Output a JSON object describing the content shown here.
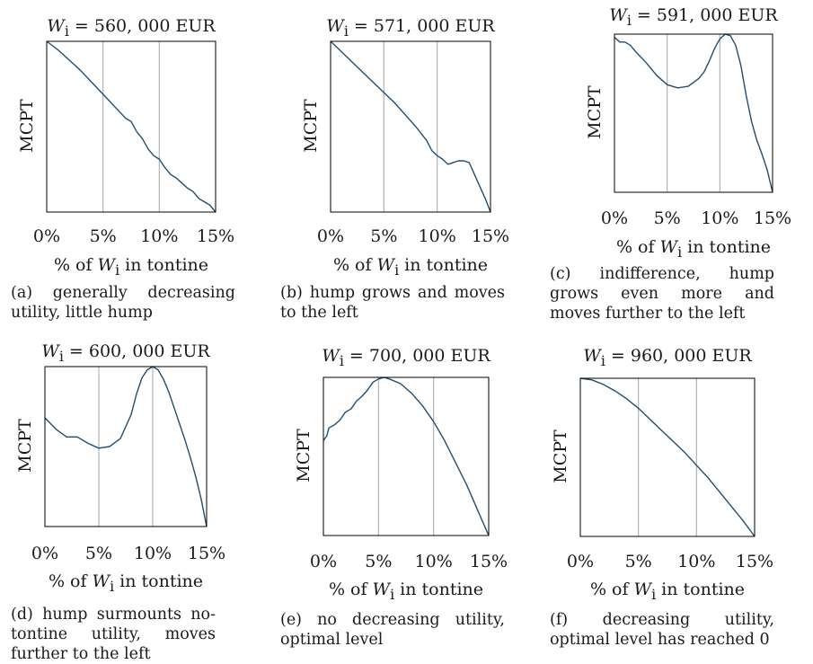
{
  "chart_data": [
    {
      "type": "line",
      "title_prefix": "W",
      "title_sub": "i",
      "title_value": " = 560, 000 EUR",
      "ylabel": "MCPT",
      "x_tick_labels": [
        "0%",
        "5%",
        "10%",
        "15%"
      ],
      "xlabel_prefix": "% of ",
      "xlabel_var": "W",
      "xlabel_sub": "i",
      "xlabel_suffix": " in tontine",
      "caption": "(a) generally decreasing utility, little hump",
      "xlim": [
        0,
        15
      ],
      "vlines": [
        5,
        10
      ],
      "x": [
        0,
        1,
        2,
        3,
        4,
        5,
        6,
        7,
        7.5,
        8,
        8.5,
        9,
        9.5,
        10,
        10.5,
        11,
        11.5,
        12,
        12.5,
        13,
        13.5,
        14,
        14.5,
        15
      ],
      "y": [
        1.0,
        0.95,
        0.89,
        0.83,
        0.76,
        0.69,
        0.62,
        0.55,
        0.53,
        0.47,
        0.43,
        0.37,
        0.33,
        0.31,
        0.26,
        0.22,
        0.2,
        0.17,
        0.14,
        0.12,
        0.08,
        0.06,
        0.04,
        0.0
      ]
    },
    {
      "type": "line",
      "title_prefix": "W",
      "title_sub": "i",
      "title_value": " = 571, 000 EUR",
      "ylabel": "MCPT",
      "x_tick_labels": [
        "0%",
        "5%",
        "10%",
        "15%"
      ],
      "xlabel_prefix": "% of ",
      "xlabel_var": "W",
      "xlabel_sub": "i",
      "xlabel_suffix": " in tontine",
      "caption": "(b) hump grows and moves to the left",
      "xlim": [
        0,
        15
      ],
      "vlines": [
        5,
        10
      ],
      "x": [
        0,
        1,
        2,
        3,
        4,
        5,
        6,
        7,
        8,
        9,
        9.5,
        10,
        10.5,
        11,
        11.5,
        12,
        12.5,
        13,
        13.5,
        14,
        14.5,
        15
      ],
      "y": [
        1.0,
        0.94,
        0.88,
        0.82,
        0.76,
        0.7,
        0.64,
        0.57,
        0.5,
        0.42,
        0.36,
        0.33,
        0.31,
        0.28,
        0.29,
        0.3,
        0.3,
        0.29,
        0.22,
        0.15,
        0.08,
        0.0
      ]
    },
    {
      "type": "line",
      "title_prefix": "W",
      "title_sub": "i",
      "title_value": " = 591, 000 EUR",
      "ylabel": "MCPT",
      "x_tick_labels": [
        "0%",
        "5%",
        "10%",
        "15%"
      ],
      "xlabel_prefix": "% of ",
      "xlabel_var": "W",
      "xlabel_sub": "i",
      "xlabel_suffix": " in tontine",
      "caption": "(c) indifference, hump grows even more and moves further to the left",
      "xlim": [
        0,
        15
      ],
      "vlines": [
        5,
        10
      ],
      "x": [
        0,
        0.5,
        1,
        1.5,
        2,
        3,
        4,
        5,
        6,
        7,
        8,
        8.5,
        9,
        9.5,
        10,
        10.5,
        11,
        11.5,
        12,
        12.5,
        13,
        13.5,
        14,
        14.5,
        15
      ],
      "y": [
        0.98,
        0.95,
        0.95,
        0.93,
        0.89,
        0.82,
        0.74,
        0.68,
        0.66,
        0.67,
        0.72,
        0.76,
        0.83,
        0.91,
        0.97,
        1.0,
        0.99,
        0.93,
        0.8,
        0.61,
        0.45,
        0.33,
        0.24,
        0.14,
        0.0
      ]
    },
    {
      "type": "line",
      "title_prefix": "W",
      "title_sub": "i",
      "title_value": " = 600, 000 EUR",
      "ylabel": "MCPT",
      "x_tick_labels": [
        "0%",
        "5%",
        "10%",
        "15%"
      ],
      "xlabel_prefix": "% of ",
      "xlabel_var": "W",
      "xlabel_sub": "i",
      "xlabel_suffix": " in tontine",
      "caption": "(d) hump surmounts no-tontine utility, moves further to the left",
      "xlim": [
        0,
        15
      ],
      "vlines": [
        5,
        10
      ],
      "x": [
        0,
        1,
        2,
        3,
        4,
        5,
        6,
        7,
        8,
        8.5,
        9,
        9.5,
        10,
        10.5,
        11,
        11.5,
        12,
        12.5,
        13,
        13.5,
        14,
        14.5,
        15
      ],
      "y": [
        0.68,
        0.61,
        0.56,
        0.56,
        0.52,
        0.49,
        0.5,
        0.55,
        0.7,
        0.83,
        0.93,
        0.98,
        1.0,
        0.98,
        0.92,
        0.84,
        0.74,
        0.64,
        0.54,
        0.43,
        0.31,
        0.17,
        0.0
      ]
    },
    {
      "type": "line",
      "title_prefix": "W",
      "title_sub": "i",
      "title_value": " = 700, 000 EUR",
      "ylabel": "MCPT",
      "x_tick_labels": [
        "0%",
        "5%",
        "10%",
        "15%"
      ],
      "xlabel_prefix": "% of ",
      "xlabel_var": "W",
      "xlabel_sub": "i",
      "xlabel_suffix": " in tontine",
      "caption": "(e) no decreasing utility, optimal level",
      "xlim": [
        0,
        15
      ],
      "vlines": [
        5,
        10
      ],
      "x": [
        0,
        0.3,
        0.5,
        1,
        1.5,
        2,
        2.5,
        3,
        3.5,
        4,
        4.5,
        5,
        5.5,
        6,
        7,
        8,
        9,
        10,
        11,
        12,
        13,
        14,
        15
      ],
      "y": [
        0.6,
        0.63,
        0.68,
        0.7,
        0.73,
        0.78,
        0.8,
        0.85,
        0.88,
        0.92,
        0.97,
        0.99,
        1.0,
        0.99,
        0.96,
        0.9,
        0.82,
        0.72,
        0.6,
        0.46,
        0.32,
        0.16,
        0.0
      ]
    },
    {
      "type": "line",
      "title_prefix": "W",
      "title_sub": "i",
      "title_value": " = 960, 000 EUR",
      "ylabel": "MCPT",
      "x_tick_labels": [
        "0%",
        "5%",
        "10%",
        "15%"
      ],
      "xlabel_prefix": "% of ",
      "xlabel_var": "W",
      "xlabel_sub": "i",
      "xlabel_suffix": " in tontine",
      "caption": "(f) decreasing utility, optimal level has reached 0",
      "xlim": [
        0,
        15
      ],
      "vlines": [
        5,
        10
      ],
      "x": [
        0,
        1,
        2,
        3,
        4,
        5,
        6,
        7,
        8,
        9,
        10,
        11,
        12,
        13,
        14,
        15
      ],
      "y": [
        1.0,
        0.99,
        0.96,
        0.92,
        0.87,
        0.81,
        0.74,
        0.67,
        0.6,
        0.53,
        0.45,
        0.37,
        0.28,
        0.19,
        0.1,
        0.0
      ]
    }
  ]
}
